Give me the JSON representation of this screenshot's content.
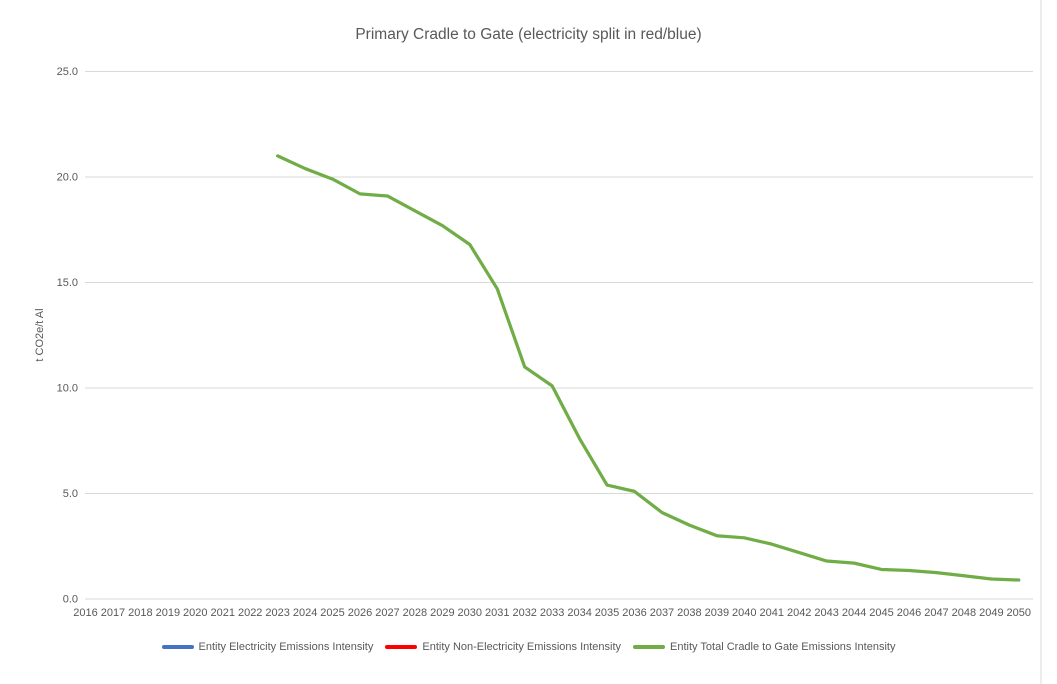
{
  "chart_data": {
    "type": "line",
    "title": "Primary Cradle to Gate (electricity split in red/blue)",
    "xlabel": "",
    "ylabel": "t CO2e/t Al",
    "ylim": [
      0,
      25
    ],
    "ytick_step": 5,
    "ytick_labels": [
      "0.0",
      "5.0",
      "10.0",
      "15.0",
      "20.0",
      "25.0"
    ],
    "grid": "horizontal",
    "legend_position": "bottom",
    "x": [
      2016,
      2017,
      2018,
      2019,
      2020,
      2021,
      2022,
      2023,
      2024,
      2025,
      2026,
      2027,
      2028,
      2029,
      2030,
      2031,
      2032,
      2033,
      2034,
      2035,
      2036,
      2037,
      2038,
      2039,
      2040,
      2041,
      2042,
      2043,
      2044,
      2045,
      2046,
      2047,
      2048,
      2049,
      2050
    ],
    "series": [
      {
        "name": "Entity Electricity Emissions Intensity",
        "color": "#4472C4",
        "values": [
          null,
          null,
          null,
          null,
          null,
          null,
          null,
          null,
          null,
          null,
          null,
          null,
          null,
          null,
          null,
          null,
          null,
          null,
          null,
          null,
          null,
          null,
          null,
          null,
          null,
          null,
          null,
          null,
          null,
          null,
          null,
          null,
          null,
          null,
          null
        ]
      },
      {
        "name": "Entity Non-Electricity Emissions Intensity",
        "color": "#FF0000",
        "values": [
          null,
          null,
          null,
          null,
          null,
          null,
          null,
          null,
          null,
          null,
          null,
          null,
          null,
          null,
          null,
          null,
          null,
          null,
          null,
          null,
          null,
          null,
          null,
          null,
          null,
          null,
          null,
          null,
          null,
          null,
          null,
          null,
          null,
          null,
          null
        ]
      },
      {
        "name": "Entity Total Cradle to Gate Emissions Intensity",
        "color": "#70AD47",
        "values": [
          null,
          null,
          null,
          null,
          null,
          null,
          null,
          21.0,
          20.4,
          19.9,
          19.2,
          19.1,
          18.4,
          17.7,
          16.8,
          14.7,
          11.0,
          10.1,
          7.6,
          5.4,
          5.1,
          4.1,
          3.5,
          3.0,
          2.9,
          2.6,
          2.2,
          1.8,
          1.7,
          1.4,
          1.35,
          1.25,
          1.1,
          0.95,
          0.9
        ]
      }
    ],
    "colors": {
      "grid": "#D9D9D9",
      "axis_text": "#595959",
      "title_text": "#595959",
      "chart_border": "#D9D9D9"
    }
  }
}
